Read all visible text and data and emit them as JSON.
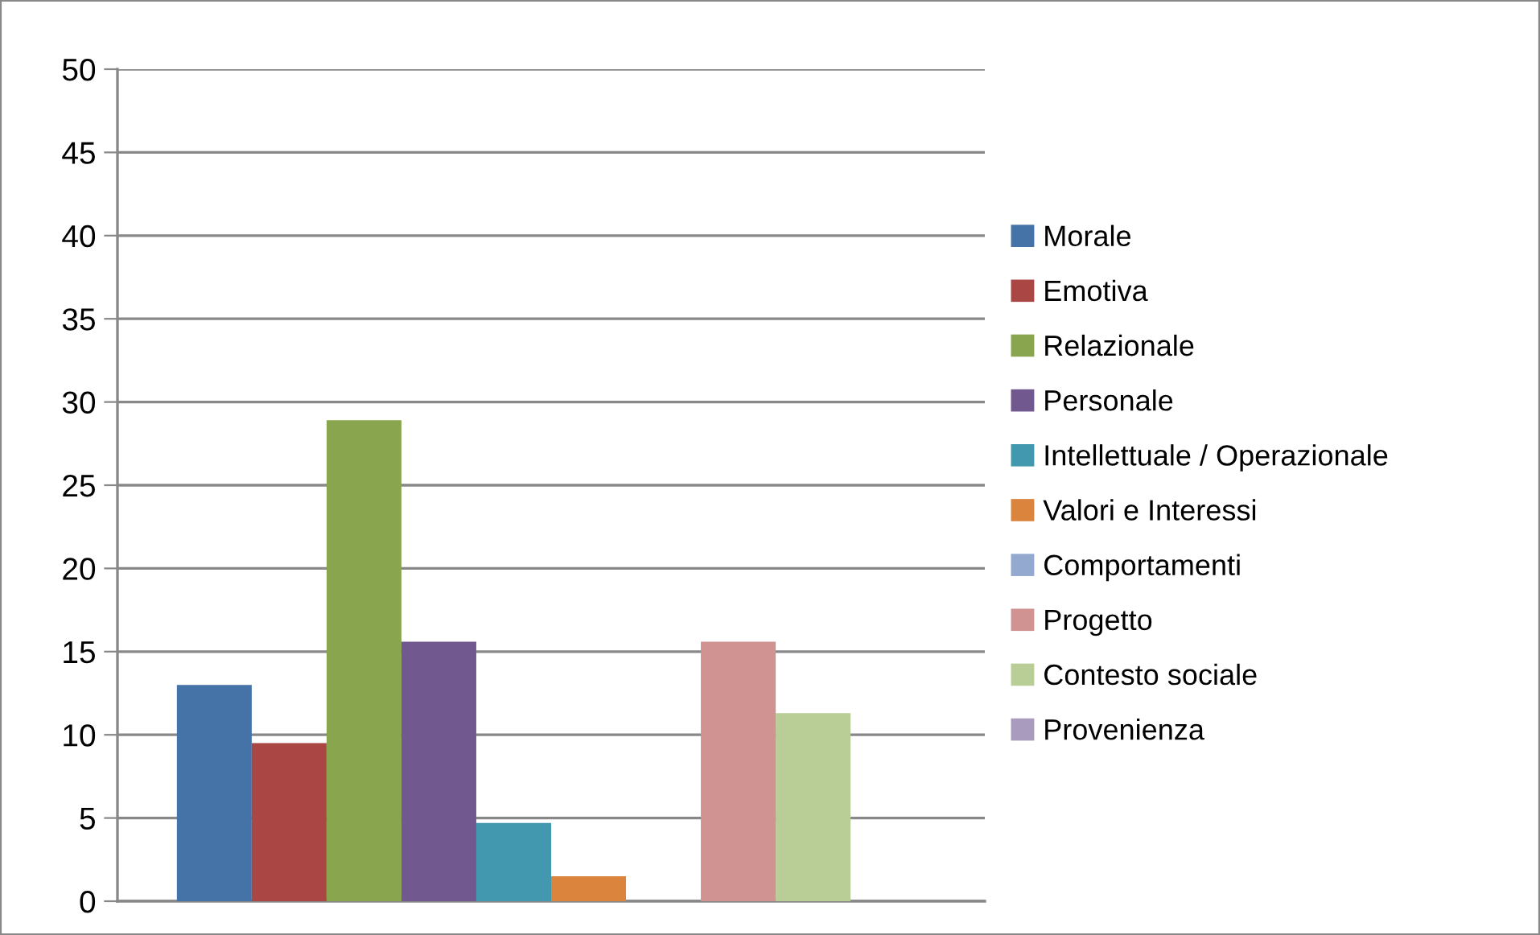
{
  "chart_data": {
    "type": "bar",
    "categories": [
      null
    ],
    "series": [
      {
        "name": "Morale",
        "color": "#4572a7",
        "values": [
          13.0
        ]
      },
      {
        "name": "Emotiva",
        "color": "#aa4643",
        "values": [
          9.5
        ]
      },
      {
        "name": "Relazionale",
        "color": "#89a54e",
        "values": [
          28.9
        ]
      },
      {
        "name": "Personale",
        "color": "#71588f",
        "values": [
          15.6
        ]
      },
      {
        "name": "Intellettuale / Operazionale",
        "color": "#4198af",
        "values": [
          4.7
        ]
      },
      {
        "name": "Valori e Interessi",
        "color": "#db843d",
        "values": [
          1.5
        ]
      },
      {
        "name": "Comportamenti",
        "color": "#93a9cf",
        "values": [
          0
        ]
      },
      {
        "name": "Progetto",
        "color": "#d19392",
        "values": [
          15.6
        ]
      },
      {
        "name": "Contesto sociale",
        "color": "#b9cd96",
        "values": [
          11.3
        ]
      },
      {
        "name": "Provenienza",
        "color": "#a99bbd",
        "values": [
          0
        ]
      }
    ],
    "ylim": [
      0,
      50
    ],
    "yticks": [
      0,
      5,
      10,
      15,
      20,
      25,
      30,
      35,
      40,
      45,
      50
    ],
    "grid": "y",
    "legend": "right"
  }
}
